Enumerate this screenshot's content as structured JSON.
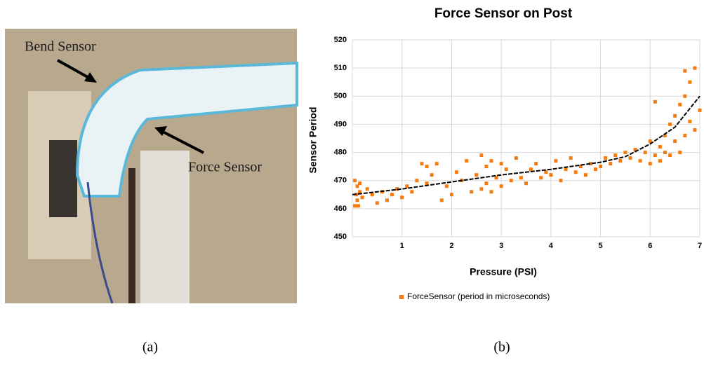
{
  "figure": {
    "photo": {
      "labels": [
        "Bend Sensor",
        "Force Sensor"
      ],
      "caption": "(a)"
    }
  },
  "chart_data": {
    "type": "scatter",
    "title": "Force Sensor on Post",
    "xlabel": "Pressure (PSI)",
    "ylabel": "Sensor Period",
    "caption": "(b)",
    "xlim": [
      0,
      7
    ],
    "xticks": [
      1,
      2,
      3,
      4,
      5,
      6,
      7
    ],
    "ylim": [
      450,
      520
    ],
    "yticks": [
      450,
      460,
      470,
      480,
      490,
      500,
      510,
      520
    ],
    "grid": true,
    "legend": "bottom",
    "series": [
      {
        "name": "ForceSensor (period in microseconds)",
        "color": "#f47c0e",
        "x": [
          0.05,
          0.05,
          0.08,
          0.1,
          0.1,
          0.12,
          0.15,
          0.15,
          0.2,
          0.3,
          0.4,
          0.5,
          0.6,
          0.7,
          0.8,
          0.9,
          1.0,
          1.1,
          1.2,
          1.3,
          1.4,
          1.5,
          1.5,
          1.6,
          1.7,
          1.8,
          1.9,
          2.0,
          2.1,
          2.2,
          2.3,
          2.4,
          2.5,
          2.6,
          2.6,
          2.7,
          2.7,
          2.8,
          2.8,
          2.9,
          3.0,
          3.0,
          3.1,
          3.2,
          3.3,
          3.4,
          3.5,
          3.6,
          3.7,
          3.8,
          3.9,
          4.0,
          4.1,
          4.2,
          4.3,
          4.4,
          4.5,
          4.6,
          4.7,
          4.8,
          4.9,
          5.0,
          5.1,
          5.2,
          5.3,
          5.4,
          5.5,
          5.6,
          5.7,
          5.8,
          5.9,
          6.0,
          6.0,
          6.1,
          6.1,
          6.2,
          6.2,
          6.3,
          6.3,
          6.4,
          6.4,
          6.5,
          6.5,
          6.6,
          6.6,
          6.7,
          6.7,
          6.7,
          6.8,
          6.8,
          6.9,
          6.9,
          7.0
        ],
        "values": [
          461,
          470,
          465,
          463,
          468,
          461,
          466,
          469,
          464,
          467,
          465,
          462,
          466,
          463,
          465,
          467,
          464,
          468,
          466,
          470,
          476,
          469,
          475,
          472,
          476,
          463,
          468,
          465,
          473,
          470,
          477,
          466,
          472,
          479,
          467,
          475,
          469,
          466,
          477,
          471,
          468,
          476,
          474,
          470,
          478,
          471,
          469,
          474,
          476,
          471,
          473,
          472,
          477,
          470,
          474,
          478,
          473,
          475,
          472,
          476,
          474,
          475,
          478,
          476,
          479,
          477,
          480,
          478,
          481,
          477,
          480,
          476,
          484,
          479,
          498,
          482,
          477,
          486,
          480,
          490,
          479,
          484,
          493,
          480,
          497,
          509,
          486,
          500,
          505,
          491,
          488,
          510,
          495
        ]
      }
    ],
    "trendline": {
      "color": "#000000",
      "x": [
        0,
        1,
        2,
        3,
        4,
        5,
        5.5,
        6,
        6.5,
        7
      ],
      "values": [
        465,
        467,
        469.5,
        472,
        474,
        476.5,
        478.5,
        483,
        489,
        500
      ]
    }
  }
}
